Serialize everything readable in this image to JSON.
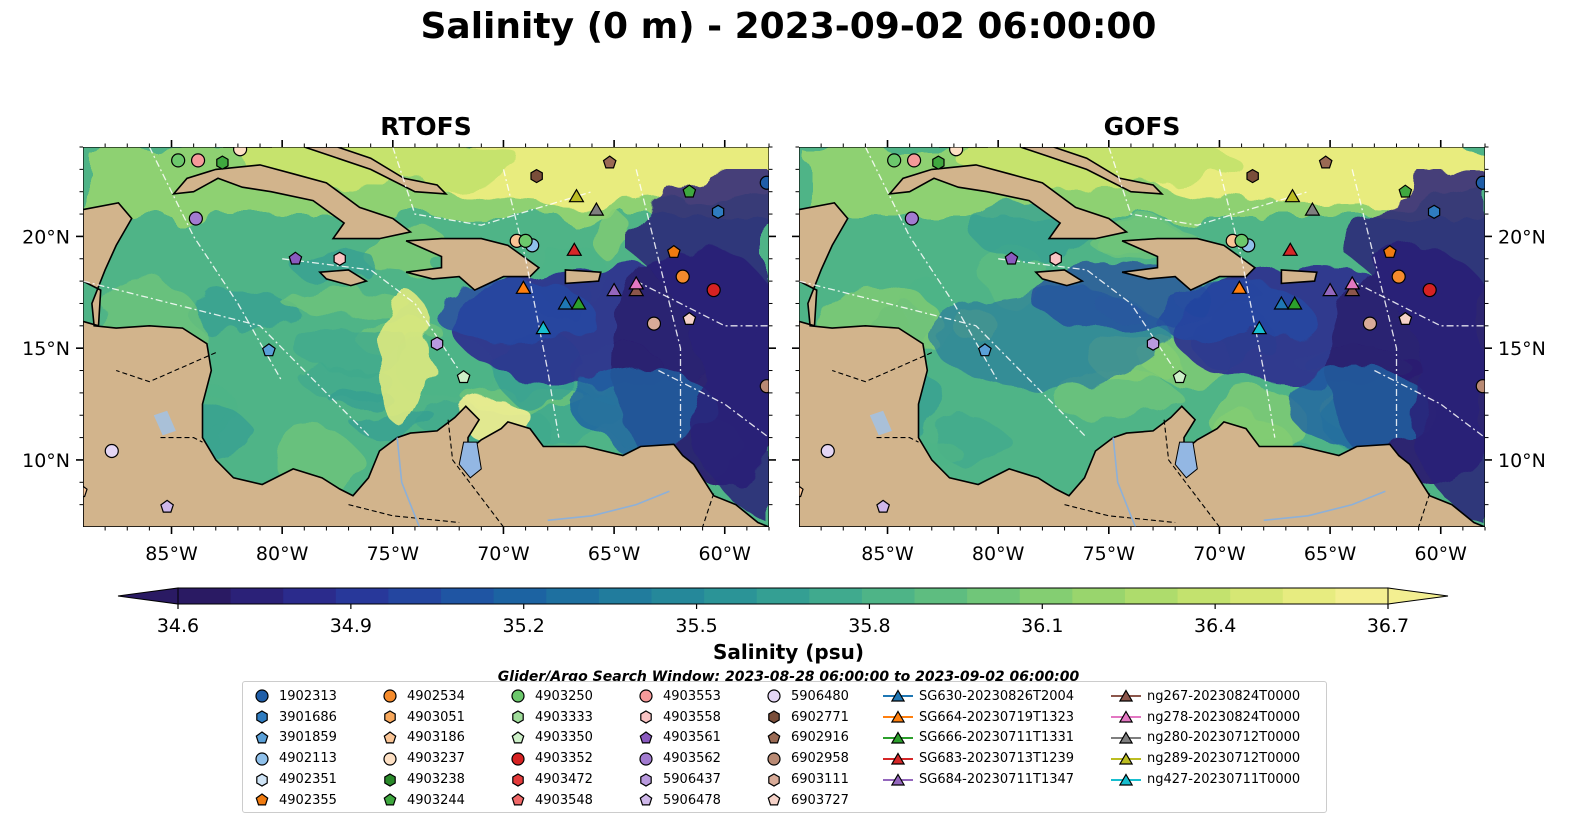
{
  "title": "Salinity (0 m) - 2023-09-02 06:00:00",
  "panels": [
    {
      "title": "RTOFS",
      "model": "rtofs"
    },
    {
      "title": "GOFS",
      "model": "gofs"
    }
  ],
  "axes": {
    "lon_ticks": [
      "85°W",
      "80°W",
      "75°W",
      "70°W",
      "65°W",
      "60°W"
    ],
    "lat_ticks": [
      "20°N",
      "15°N",
      "10°N"
    ]
  },
  "colorbar": {
    "label": "Salinity (psu)",
    "ticks": [
      "34.6",
      "34.9",
      "35.2",
      "35.5",
      "35.8",
      "36.1",
      "36.4",
      "36.7"
    ],
    "colors": [
      "#2a1a63",
      "#2b2178",
      "#2b2b8c",
      "#28389a",
      "#2446a0",
      "#1f55a3",
      "#1c63a2",
      "#1e70a0",
      "#217c9d",
      "#25889a",
      "#2b9497",
      "#349f93",
      "#40aa8e",
      "#4eb487",
      "#5ebd80",
      "#70c679",
      "#84ce72",
      "#99d56d",
      "#aedc6c",
      "#c3e26e",
      "#d6e774",
      "#e7ec80",
      "#f3ef91"
    ]
  },
  "search_window": "Glider/Argo Search Window: 2023-08-28 06:00:00 to 2023-09-02 06:00:00",
  "legend": {
    "columns": [
      [
        {
          "label": "1902313",
          "marker": "circle",
          "color": "#1f5ea8"
        },
        {
          "label": "3901686",
          "marker": "hexagon",
          "color": "#2f7cc0"
        },
        {
          "label": "3901859",
          "marker": "pentagon",
          "color": "#5aa0d8"
        },
        {
          "label": "4902113",
          "marker": "circle",
          "color": "#8fc0ea"
        },
        {
          "label": "4902351",
          "marker": "hexagon",
          "color": "#cfe4f6"
        },
        {
          "label": "4902355",
          "marker": "pentagon",
          "color": "#f07b10"
        }
      ],
      [
        {
          "label": "4902534",
          "marker": "circle",
          "color": "#f58b2c"
        },
        {
          "label": "4903051",
          "marker": "hexagon",
          "color": "#f8a85c"
        },
        {
          "label": "4903186",
          "marker": "pentagon",
          "color": "#fac596"
        },
        {
          "label": "4903237",
          "marker": "circle",
          "color": "#fde0c4"
        },
        {
          "label": "4903238",
          "marker": "hexagon",
          "color": "#2a8a2a"
        },
        {
          "label": "4903244",
          "marker": "pentagon",
          "color": "#3fa83f"
        }
      ],
      [
        {
          "label": "4903250",
          "marker": "circle",
          "color": "#6cc86c"
        },
        {
          "label": "4903333",
          "marker": "hexagon",
          "color": "#9fdc9a"
        },
        {
          "label": "4903350",
          "marker": "pentagon",
          "color": "#cdf0c8"
        },
        {
          "label": "4903352",
          "marker": "circle",
          "color": "#d62222"
        },
        {
          "label": "4903472",
          "marker": "hexagon",
          "color": "#e43b3b"
        },
        {
          "label": "4903548",
          "marker": "pentagon",
          "color": "#f06868"
        }
      ],
      [
        {
          "label": "4903553",
          "marker": "circle",
          "color": "#f59a9a"
        },
        {
          "label": "4903558",
          "marker": "hexagon",
          "color": "#fac4c4"
        },
        {
          "label": "4903561",
          "marker": "pentagon",
          "color": "#8a5abf"
        },
        {
          "label": "4903562",
          "marker": "circle",
          "color": "#a27bd0"
        },
        {
          "label": "5906437",
          "marker": "hexagon",
          "color": "#b99ade"
        },
        {
          "label": "5906478",
          "marker": "pentagon",
          "color": "#cfb8ea"
        }
      ],
      [
        {
          "label": "5906480",
          "marker": "circle",
          "color": "#e4d6f4"
        },
        {
          "label": "6902771",
          "marker": "hexagon",
          "color": "#7a4e3a"
        },
        {
          "label": "6902916",
          "marker": "pentagon",
          "color": "#9a6a54"
        },
        {
          "label": "6902958",
          "marker": "circle",
          "color": "#b98a74"
        },
        {
          "label": "6903111",
          "marker": "hexagon",
          "color": "#d8ab98"
        },
        {
          "label": "6903727",
          "marker": "pentagon",
          "color": "#f5d2c8"
        }
      ],
      [
        {
          "label": "SG630-20230826T2004",
          "marker": "triangle-line",
          "color": "#1f77b4"
        },
        {
          "label": "SG664-20230719T1323",
          "marker": "triangle-line",
          "color": "#ff7f0e"
        },
        {
          "label": "SG666-20230711T1331",
          "marker": "triangle-line",
          "color": "#2ca02c"
        },
        {
          "label": "SG683-20230713T1239",
          "marker": "triangle-line",
          "color": "#d62728"
        },
        {
          "label": "SG684-20230711T1347",
          "marker": "triangle-line",
          "color": "#9467bd"
        }
      ],
      [
        {
          "label": "ng267-20230824T0000",
          "marker": "triangle-line",
          "color": "#8c564b"
        },
        {
          "label": "ng278-20230824T0000",
          "marker": "triangle-line",
          "color": "#e377c2"
        },
        {
          "label": "ng280-20230712T0000",
          "marker": "triangle-line",
          "color": "#7f7f7f"
        },
        {
          "label": "ng289-20230712T0000",
          "marker": "triangle-line",
          "color": "#bcbd22"
        },
        {
          "label": "ng427-20230711T0000",
          "marker": "triangle-line",
          "color": "#17becf"
        }
      ]
    ]
  },
  "markers": [
    {
      "lon": -84.7,
      "lat": 23.4,
      "shape": "circle",
      "color": "#6cc86c"
    },
    {
      "lon": -83.8,
      "lat": 23.4,
      "shape": "circle",
      "color": "#f59a9a"
    },
    {
      "lon": -82.7,
      "lat": 23.3,
      "shape": "hexagon",
      "color": "#3fa83f"
    },
    {
      "lon": -81.9,
      "lat": 23.9,
      "shape": "circle",
      "color": "#fde0c4"
    },
    {
      "lon": -83.9,
      "lat": 20.8,
      "shape": "circle",
      "color": "#a27bd0"
    },
    {
      "lon": -68.5,
      "lat": 22.7,
      "shape": "hexagon",
      "color": "#7a4e3a"
    },
    {
      "lon": -65.2,
      "lat": 23.3,
      "shape": "pentagon",
      "color": "#9a6a54"
    },
    {
      "lon": -58.1,
      "lat": 22.4,
      "shape": "circle",
      "color": "#1f5ea8"
    },
    {
      "lon": -61.6,
      "lat": 22.0,
      "shape": "pentagon",
      "color": "#3fa83f"
    },
    {
      "lon": -60.3,
      "lat": 21.1,
      "shape": "hexagon",
      "color": "#2f7cc0"
    },
    {
      "lon": -69.4,
      "lat": 19.8,
      "shape": "circle",
      "color": "#fac596"
    },
    {
      "lon": -68.7,
      "lat": 19.6,
      "shape": "circle",
      "color": "#8fc0ea"
    },
    {
      "lon": -69.0,
      "lat": 19.8,
      "shape": "circle",
      "color": "#6cc86c"
    },
    {
      "lon": -77.4,
      "lat": 19.0,
      "shape": "hexagon",
      "color": "#fac4c4"
    },
    {
      "lon": -79.4,
      "lat": 19.0,
      "shape": "pentagon",
      "color": "#8a5abf"
    },
    {
      "lon": -62.3,
      "lat": 19.3,
      "shape": "pentagon",
      "color": "#f07b10"
    },
    {
      "lon": -61.9,
      "lat": 18.2,
      "shape": "circle",
      "color": "#f58b2c"
    },
    {
      "lon": -60.5,
      "lat": 17.6,
      "shape": "circle",
      "color": "#d62222"
    },
    {
      "lon": -63.2,
      "lat": 16.1,
      "shape": "circle",
      "color": "#d8ab98"
    },
    {
      "lon": -61.6,
      "lat": 16.3,
      "shape": "pentagon",
      "color": "#f5d2c8"
    },
    {
      "lon": -80.6,
      "lat": 14.9,
      "shape": "pentagon",
      "color": "#5aa0d8"
    },
    {
      "lon": -73.0,
      "lat": 15.2,
      "shape": "hexagon",
      "color": "#b99ade"
    },
    {
      "lon": -71.8,
      "lat": 13.7,
      "shape": "pentagon",
      "color": "#cdf0c8"
    },
    {
      "lon": -58.1,
      "lat": 13.3,
      "shape": "circle",
      "color": "#b98a74"
    },
    {
      "lon": -87.7,
      "lat": 10.4,
      "shape": "circle",
      "color": "#e4d6f4"
    },
    {
      "lon": -89.1,
      "lat": 8.6,
      "shape": "pentagon",
      "color": "#fac596"
    },
    {
      "lon": -85.2,
      "lat": 7.9,
      "shape": "pentagon",
      "color": "#cfb8ea"
    },
    {
      "lon": -66.7,
      "lat": 21.8,
      "shape": "triangle",
      "color": "#bcbd22"
    },
    {
      "lon": -65.8,
      "lat": 21.2,
      "shape": "triangle",
      "color": "#7f7f7f"
    },
    {
      "lon": -66.8,
      "lat": 19.4,
      "shape": "triangle",
      "color": "#d62728"
    },
    {
      "lon": -69.1,
      "lat": 17.7,
      "shape": "triangle",
      "color": "#ff7f0e"
    },
    {
      "lon": -67.2,
      "lat": 17.0,
      "shape": "triangle",
      "color": "#1f77b4"
    },
    {
      "lon": -66.6,
      "lat": 17.0,
      "shape": "triangle",
      "color": "#2ca02c"
    },
    {
      "lon": -65.0,
      "lat": 17.6,
      "shape": "triangle",
      "color": "#9467bd"
    },
    {
      "lon": -64.0,
      "lat": 17.6,
      "shape": "triangle",
      "color": "#8c564b"
    },
    {
      "lon": -64.0,
      "lat": 17.9,
      "shape": "triangle",
      "color": "#e377c2"
    },
    {
      "lon": -68.2,
      "lat": 15.9,
      "shape": "triangle",
      "color": "#17becf"
    }
  ]
}
